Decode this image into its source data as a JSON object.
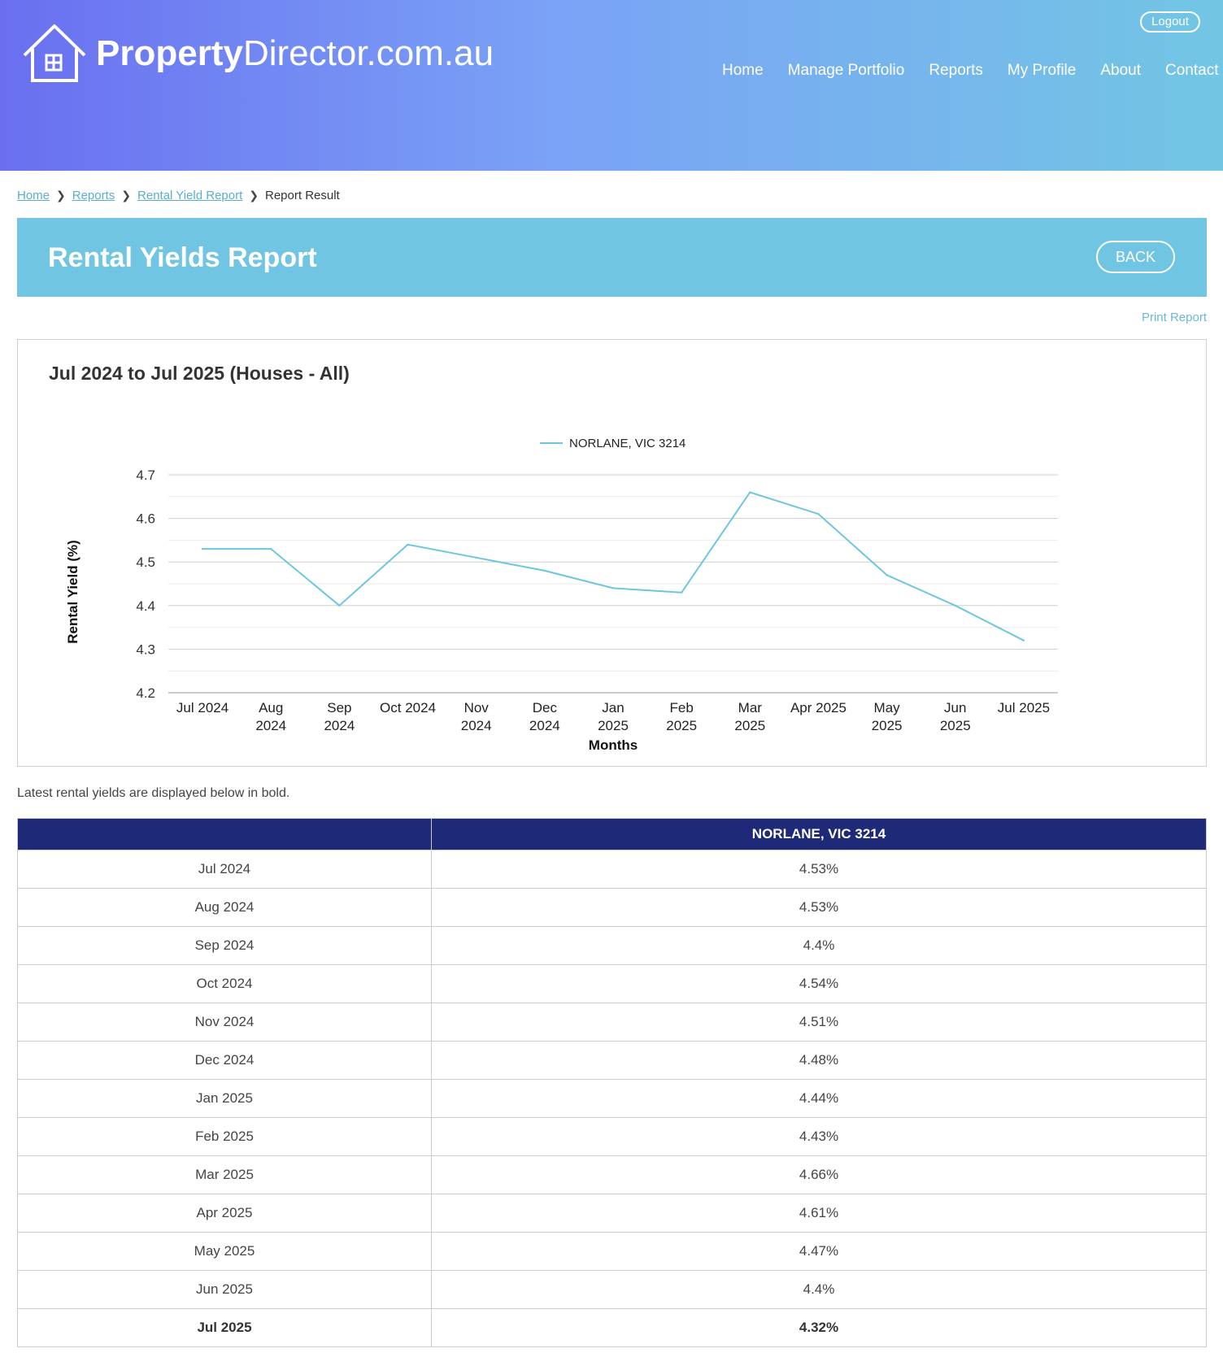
{
  "header": {
    "logo_strong": "Property",
    "logo_light": "Director.com.au",
    "logout_label": "Logout",
    "nav": [
      "Home",
      "Manage Portfolio",
      "Reports",
      "My Profile",
      "About",
      "Contact"
    ]
  },
  "breadcrumb": {
    "items": [
      "Home",
      "Reports",
      "Rental Yield Report"
    ],
    "current": "Report Result"
  },
  "banner": {
    "title": "Rental Yields Report",
    "back_label": "BACK"
  },
  "print_label": "Print Report",
  "chart_data": {
    "type": "line",
    "title": "Jul 2024 to Jul 2025 (Houses - All)",
    "xlabel": "Months",
    "ylabel": "Rental Yield (%)",
    "ylim": [
      4.2,
      4.7
    ],
    "yticks": [
      4.2,
      4.3,
      4.4,
      4.5,
      4.6,
      4.7
    ],
    "grid": true,
    "legend_position": "top",
    "categories": [
      [
        "Jul 2024"
      ],
      [
        "Aug",
        "2024"
      ],
      [
        "Sep",
        "2024"
      ],
      [
        "Oct 2024"
      ],
      [
        "Nov",
        "2024"
      ],
      [
        "Dec",
        "2024"
      ],
      [
        "Jan",
        "2025"
      ],
      [
        "Feb",
        "2025"
      ],
      [
        "Mar",
        "2025"
      ],
      [
        "Apr 2025"
      ],
      [
        "May",
        "2025"
      ],
      [
        "Jun",
        "2025"
      ],
      [
        "Jul 2025"
      ]
    ],
    "series": [
      {
        "name": "NORLANE, VIC 3214",
        "color": "#6ec6de",
        "values": [
          4.53,
          4.53,
          4.4,
          4.54,
          4.51,
          4.48,
          4.44,
          4.43,
          4.66,
          4.61,
          4.47,
          4.4,
          4.32
        ]
      }
    ]
  },
  "table": {
    "note": "Latest rental yields are displayed below in bold.",
    "header": [
      "",
      "NORLANE, VIC 3214"
    ],
    "rows": [
      {
        "month": "Jul 2024",
        "value": "4.53%"
      },
      {
        "month": "Aug 2024",
        "value": "4.53%"
      },
      {
        "month": "Sep 2024",
        "value": "4.4%"
      },
      {
        "month": "Oct 2024",
        "value": "4.54%"
      },
      {
        "month": "Nov 2024",
        "value": "4.51%"
      },
      {
        "month": "Dec 2024",
        "value": "4.48%"
      },
      {
        "month": "Jan 2025",
        "value": "4.44%"
      },
      {
        "month": "Feb 2025",
        "value": "4.43%"
      },
      {
        "month": "Mar 2025",
        "value": "4.66%"
      },
      {
        "month": "Apr 2025",
        "value": "4.61%"
      },
      {
        "month": "May 2025",
        "value": "4.47%"
      },
      {
        "month": "Jun 2025",
        "value": "4.4%"
      },
      {
        "month": "Jul 2025",
        "value": "4.32%",
        "latest": true
      }
    ]
  }
}
